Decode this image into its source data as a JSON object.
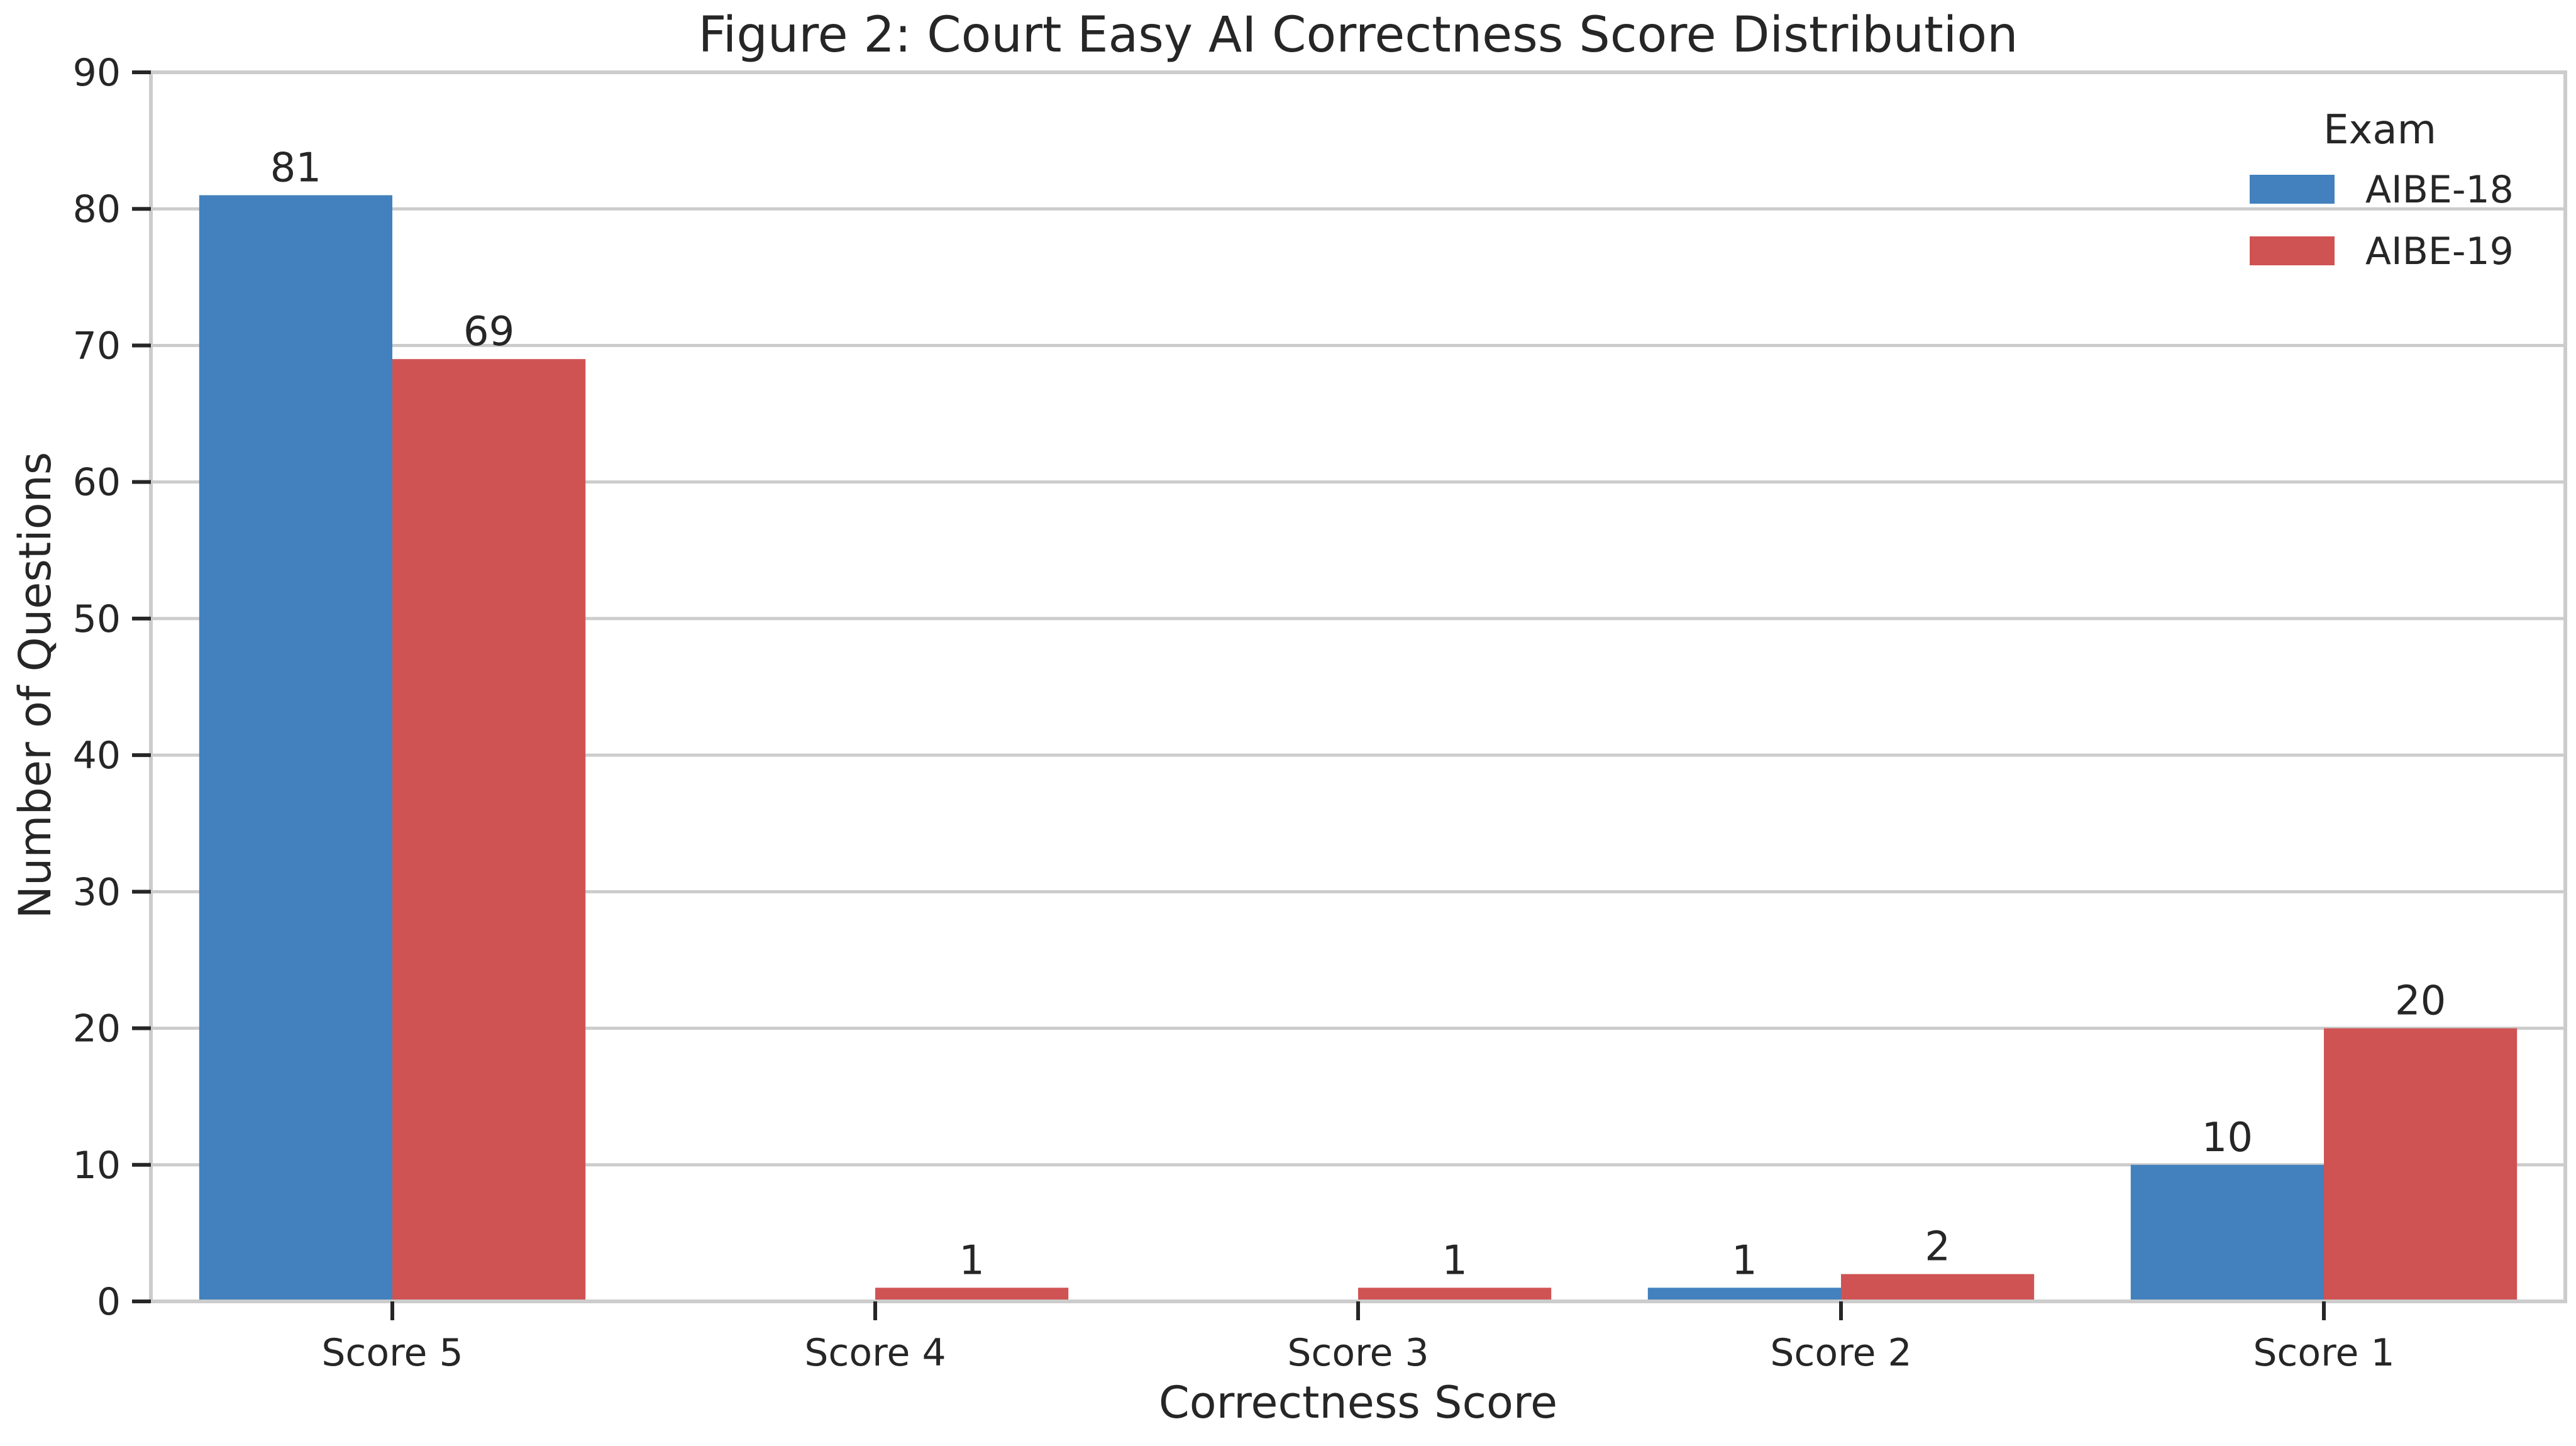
{
  "chart_data": {
    "type": "bar",
    "title": "Figure 2: Court Easy AI Correctness Score Distribution",
    "xlabel": "Correctness Score",
    "ylabel": "Number of Questions",
    "categories": [
      "Score 5",
      "Score 4",
      "Score 3",
      "Score 2",
      "Score 1"
    ],
    "ylim": [
      0,
      90
    ],
    "yticks": [
      0,
      10,
      20,
      30,
      40,
      50,
      60,
      70,
      80,
      90
    ],
    "grid": true,
    "legend": {
      "title": "Exam",
      "placement": "top-right"
    },
    "series": [
      {
        "name": "AIBE-18",
        "color": "#4281bd",
        "values": [
          81,
          0,
          0,
          1,
          10
        ],
        "labels": [
          "81",
          "",
          "",
          "1",
          "10"
        ]
      },
      {
        "name": "AIBE-19",
        "color": "#d05353",
        "values": [
          69,
          1,
          1,
          2,
          20
        ],
        "labels": [
          "69",
          "1",
          "1",
          "2",
          "20"
        ]
      }
    ]
  }
}
